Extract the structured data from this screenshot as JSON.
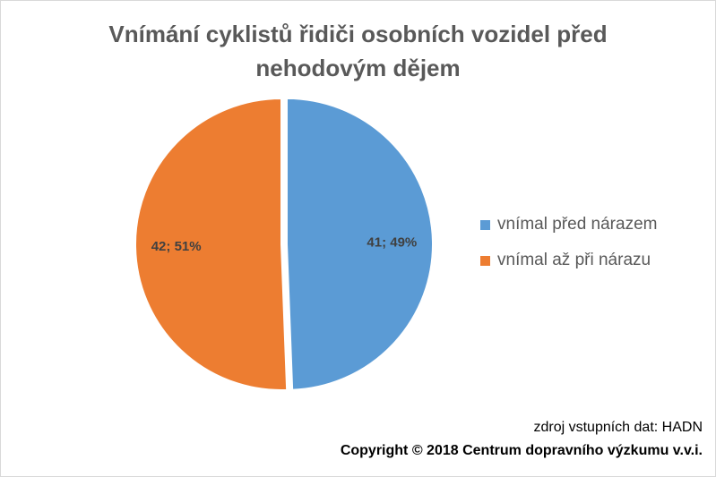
{
  "chart_data": {
    "type": "pie",
    "title": "Vnímání cyklistů řidiči osobních vozidel před nehodovým dějem",
    "title_lines": [
      "Vnímání cyklistů řidiči osobních vozidel před",
      "nehodovým dějem"
    ],
    "slices": [
      {
        "label": "vnímal před nárazem",
        "value": 41,
        "percent": 49,
        "data_label": "41; 49%",
        "color": "#5b9bd5",
        "exploded": true
      },
      {
        "label": "vnímal až při nárazu",
        "value": 42,
        "percent": 51,
        "data_label": "42; 51%",
        "color": "#ed7d31",
        "exploded": false
      }
    ],
    "legend_position": "right"
  },
  "footer": {
    "source": "zdroj vstupních dat: HADN",
    "copyright": "Copyright © 2018 Centrum dopravního výzkumu v.v.i."
  }
}
